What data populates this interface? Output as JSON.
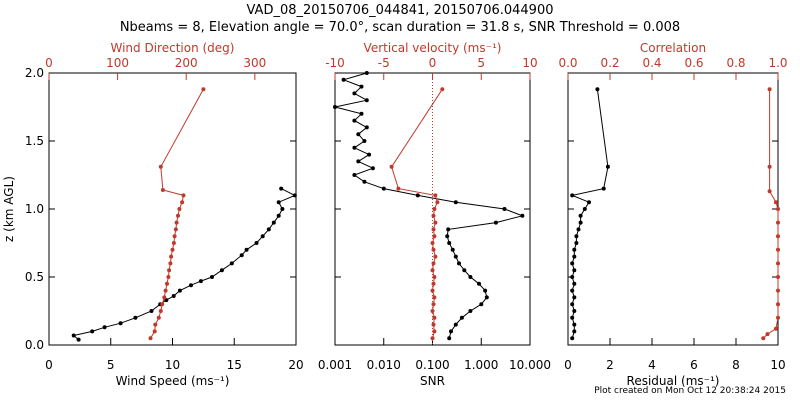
{
  "header": {
    "title": "VAD_08_20150706_044841, 20150706.044900",
    "subtitle": "Nbeams = 8, Elevation angle = 70.0°, scan duration = 31.8 s, SNR Threshold = 0.008"
  },
  "footer": {
    "text": "Plot created on Mon Oct 12 20:38:24 2015"
  },
  "colors": {
    "black": "#000000",
    "red": "#c0392b"
  },
  "chart_data": [
    {
      "type": "line",
      "ylabel": "z (km AGL)",
      "ylabel_main": "z (km AGL)",
      "ylim": [
        0,
        2.0
      ],
      "yticks": [
        "0.0",
        "0.5",
        "1.0",
        "1.5",
        "2.0"
      ],
      "yticks_vals": [
        0,
        0.5,
        1.0,
        1.5,
        2.0
      ],
      "bottom_axis": {
        "label": "Wind Speed (ms⁻¹)",
        "range": [
          0,
          20
        ],
        "ticks": [
          "0",
          "5",
          "10",
          "15",
          "20"
        ],
        "tick_vals": [
          0,
          5,
          10,
          15,
          20
        ],
        "scale": "linear"
      },
      "top_axis": {
        "label": "Wind Direction (deg)",
        "range": [
          0,
          360
        ],
        "ticks": [
          "0",
          "100",
          "200",
          "300"
        ],
        "tick_vals": [
          0,
          100,
          200,
          300
        ],
        "scale": "linear"
      },
      "series": [
        {
          "axis": "bottom",
          "color": "black",
          "points": [
            [
              2.4,
              0.04
            ],
            [
              2.0,
              0.07
            ],
            [
              3.5,
              0.1
            ],
            [
              4.5,
              0.13
            ],
            [
              5.8,
              0.16
            ],
            [
              7.0,
              0.2
            ],
            [
              8.3,
              0.25
            ],
            [
              9.0,
              0.3
            ],
            [
              9.5,
              0.33
            ],
            [
              10.1,
              0.36
            ],
            [
              10.6,
              0.4
            ],
            [
              11.5,
              0.44
            ],
            [
              12.3,
              0.47
            ],
            [
              13.2,
              0.5
            ],
            [
              14.0,
              0.55
            ],
            [
              14.8,
              0.6
            ],
            [
              15.6,
              0.66
            ],
            [
              16.0,
              0.7
            ],
            [
              16.8,
              0.75
            ],
            [
              17.3,
              0.8
            ],
            [
              17.8,
              0.85
            ],
            [
              18.2,
              0.9
            ],
            [
              18.6,
              0.95
            ],
            [
              18.9,
              1.0
            ],
            [
              18.6,
              1.05
            ],
            [
              19.9,
              1.1
            ],
            [
              18.8,
              1.15
            ]
          ]
        },
        {
          "axis": "top",
          "color": "red",
          "points": [
            [
              148,
              0.05
            ],
            [
              154,
              0.1
            ],
            [
              155,
              0.15
            ],
            [
              160,
              0.2
            ],
            [
              163,
              0.25
            ],
            [
              165,
              0.3
            ],
            [
              168,
              0.35
            ],
            [
              170,
              0.4
            ],
            [
              172,
              0.45
            ],
            [
              174,
              0.5
            ],
            [
              175,
              0.55
            ],
            [
              177,
              0.6
            ],
            [
              178,
              0.65
            ],
            [
              180,
              0.7
            ],
            [
              182,
              0.75
            ],
            [
              183,
              0.8
            ],
            [
              185,
              0.85
            ],
            [
              186,
              0.9
            ],
            [
              188,
              0.95
            ],
            [
              190,
              1.0
            ],
            [
              194,
              1.05
            ],
            [
              196,
              1.1
            ],
            [
              166,
              1.14
            ],
            [
              163,
              1.31
            ],
            [
              225,
              1.88
            ]
          ]
        }
      ]
    },
    {
      "type": "line",
      "ylim": [
        0,
        2.0
      ],
      "yticks_vals": [
        0,
        0.5,
        1.0,
        1.5,
        2.0
      ],
      "bottom_axis": {
        "label": "SNR",
        "range": [
          0.001,
          10
        ],
        "ticks": [
          "0.001",
          "0.010",
          "0.100",
          "1.000",
          "10.000"
        ],
        "tick_vals": [
          0.001,
          0.01,
          0.1,
          1,
          10
        ],
        "scale": "log"
      },
      "top_axis": {
        "label": "Vertical velocity (ms⁻¹)",
        "range": [
          -10,
          10
        ],
        "ticks": [
          "-10",
          "-5",
          "0",
          "5",
          "10"
        ],
        "tick_vals": [
          -10,
          -5,
          0,
          5,
          10
        ],
        "scale": "linear"
      },
      "series": [
        {
          "axis": "bottom",
          "color": "black",
          "points": [
            [
              0.22,
              0.05
            ],
            [
              0.24,
              0.1
            ],
            [
              0.3,
              0.15
            ],
            [
              0.4,
              0.2
            ],
            [
              0.6,
              0.25
            ],
            [
              1.0,
              0.3
            ],
            [
              1.3,
              0.35
            ],
            [
              1.2,
              0.4
            ],
            [
              0.9,
              0.45
            ],
            [
              0.6,
              0.5
            ],
            [
              0.45,
              0.55
            ],
            [
              0.35,
              0.6
            ],
            [
              0.3,
              0.65
            ],
            [
              0.26,
              0.7
            ],
            [
              0.22,
              0.75
            ],
            [
              0.2,
              0.8
            ],
            [
              0.21,
              0.85
            ],
            [
              2.0,
              0.9
            ],
            [
              7.0,
              0.95
            ],
            [
              3.0,
              1.0
            ],
            [
              0.3,
              1.05
            ],
            [
              0.05,
              1.1
            ],
            [
              0.01,
              1.15
            ],
            [
              0.004,
              1.2
            ],
            [
              0.0025,
              1.25
            ],
            [
              0.006,
              1.3
            ],
            [
              0.003,
              1.35
            ],
            [
              0.005,
              1.4
            ],
            [
              0.0025,
              1.45
            ],
            [
              0.004,
              1.5
            ],
            [
              0.003,
              1.55
            ],
            [
              0.0045,
              1.6
            ],
            [
              0.0025,
              1.65
            ],
            [
              0.0035,
              1.7
            ],
            [
              0.001,
              1.75
            ],
            [
              0.0045,
              1.8
            ],
            [
              0.0025,
              1.85
            ],
            [
              0.0035,
              1.9
            ],
            [
              0.0015,
              1.95
            ],
            [
              0.0045,
              2.0
            ]
          ]
        },
        {
          "axis": "top",
          "color": "red",
          "points": [
            [
              0.0,
              0.05
            ],
            [
              0.2,
              0.1
            ],
            [
              0.1,
              0.15
            ],
            [
              0.2,
              0.2
            ],
            [
              0.0,
              0.25
            ],
            [
              0.1,
              0.3
            ],
            [
              0.2,
              0.35
            ],
            [
              0.0,
              0.4
            ],
            [
              0.1,
              0.45
            ],
            [
              0.2,
              0.5
            ],
            [
              0.0,
              0.55
            ],
            [
              0.1,
              0.6
            ],
            [
              0.3,
              0.65
            ],
            [
              0.1,
              0.7
            ],
            [
              0.0,
              0.75
            ],
            [
              0.2,
              0.8
            ],
            [
              0.1,
              0.85
            ],
            [
              0.3,
              0.9
            ],
            [
              0.1,
              0.95
            ],
            [
              0.2,
              1.0
            ],
            [
              0.5,
              1.05
            ],
            [
              0.3,
              1.1
            ],
            [
              -3.5,
              1.15
            ],
            [
              -4.2,
              1.31
            ],
            [
              1.0,
              1.88
            ]
          ]
        }
      ],
      "reference_line": {
        "axis": "top",
        "value": 0,
        "color": "red",
        "style": "dotted"
      }
    },
    {
      "type": "line",
      "ylim": [
        0,
        2.0
      ],
      "yticks_vals": [
        0,
        0.5,
        1.0,
        1.5,
        2.0
      ],
      "bottom_axis": {
        "label": "Residual (ms⁻¹)",
        "range": [
          0,
          10
        ],
        "ticks": [
          "0",
          "2",
          "4",
          "6",
          "8",
          "10"
        ],
        "tick_vals": [
          0,
          2,
          4,
          6,
          8,
          10
        ],
        "scale": "linear"
      },
      "top_axis": {
        "label": "Correlation",
        "range": [
          0,
          1.0
        ],
        "ticks": [
          "0.0",
          "0.2",
          "0.4",
          "0.6",
          "0.8",
          "1.0"
        ],
        "tick_vals": [
          0,
          0.2,
          0.4,
          0.6,
          0.8,
          1.0
        ],
        "scale": "linear"
      },
      "series": [
        {
          "axis": "bottom",
          "color": "black",
          "points": [
            [
              0.2,
              0.05
            ],
            [
              0.3,
              0.1
            ],
            [
              0.3,
              0.15
            ],
            [
              0.2,
              0.2
            ],
            [
              0.3,
              0.25
            ],
            [
              0.2,
              0.3
            ],
            [
              0.3,
              0.35
            ],
            [
              0.2,
              0.4
            ],
            [
              0.3,
              0.45
            ],
            [
              0.2,
              0.5
            ],
            [
              0.3,
              0.55
            ],
            [
              0.2,
              0.6
            ],
            [
              0.3,
              0.65
            ],
            [
              0.3,
              0.7
            ],
            [
              0.4,
              0.75
            ],
            [
              0.4,
              0.8
            ],
            [
              0.5,
              0.85
            ],
            [
              0.6,
              0.9
            ],
            [
              0.6,
              0.95
            ],
            [
              0.8,
              1.0
            ],
            [
              1.0,
              1.05
            ],
            [
              0.2,
              1.1
            ],
            [
              1.7,
              1.15
            ],
            [
              1.9,
              1.31
            ],
            [
              1.4,
              1.88
            ]
          ]
        },
        {
          "axis": "top",
          "color": "red",
          "points": [
            [
              0.93,
              0.05
            ],
            [
              0.95,
              0.08
            ],
            [
              0.99,
              0.12
            ],
            [
              1.0,
              0.2
            ],
            [
              1.0,
              0.3
            ],
            [
              1.0,
              0.4
            ],
            [
              1.0,
              0.5
            ],
            [
              1.0,
              0.6
            ],
            [
              1.0,
              0.7
            ],
            [
              1.0,
              0.8
            ],
            [
              1.0,
              0.9
            ],
            [
              1.0,
              1.0
            ],
            [
              0.99,
              1.05
            ],
            [
              0.96,
              1.13
            ],
            [
              0.96,
              1.31
            ],
            [
              0.96,
              1.88
            ]
          ]
        }
      ]
    }
  ]
}
